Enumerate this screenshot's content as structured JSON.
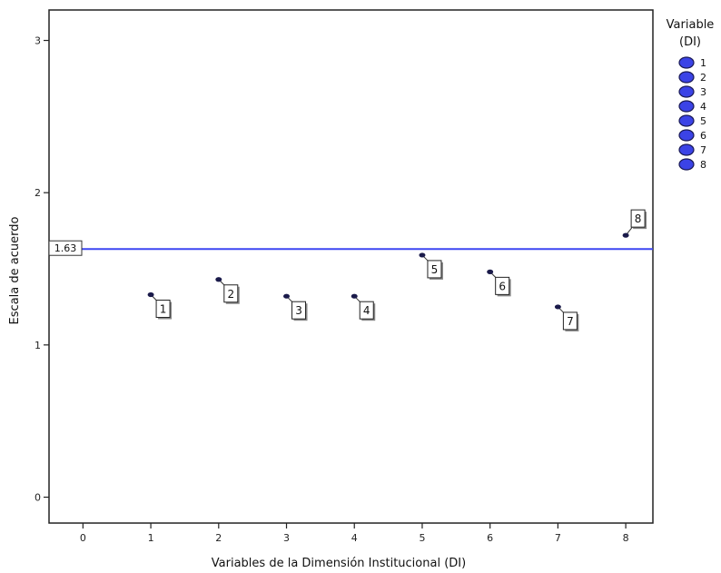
{
  "chart_data": {
    "type": "scatter",
    "title": "",
    "xlabel": "Variables de la Dimensión Institucional (DI)",
    "ylabel": "Escala de acuerdo",
    "xlim": [
      -0.5,
      8.4
    ],
    "ylim": [
      -0.17,
      3.2
    ],
    "x_ticks": [
      "0",
      "1",
      "2",
      "3",
      "4",
      "5",
      "6",
      "7",
      "8"
    ],
    "y_ticks": [
      "0",
      "1",
      "2",
      "3"
    ],
    "grid": false,
    "reference_line": {
      "value": 1.63,
      "label": "1.63",
      "color": "#3d46f2"
    },
    "points": [
      {
        "label": "1",
        "x": 1,
        "y": 1.33
      },
      {
        "label": "2",
        "x": 2,
        "y": 1.43
      },
      {
        "label": "3",
        "x": 3,
        "y": 1.32
      },
      {
        "label": "4",
        "x": 4,
        "y": 1.32
      },
      {
        "label": "5",
        "x": 5,
        "y": 1.59
      },
      {
        "label": "6",
        "x": 6,
        "y": 1.48
      },
      {
        "label": "7",
        "x": 7,
        "y": 1.25
      },
      {
        "label": "8",
        "x": 8,
        "y": 1.72
      }
    ],
    "marker_color": "#1a1a4a",
    "legend": {
      "title_line1": "Variable",
      "title_line2": "(DI)",
      "placement": "right",
      "marker_color": "#3b43e6",
      "entries": [
        "1",
        "2",
        "3",
        "4",
        "5",
        "6",
        "7",
        "8"
      ]
    }
  }
}
